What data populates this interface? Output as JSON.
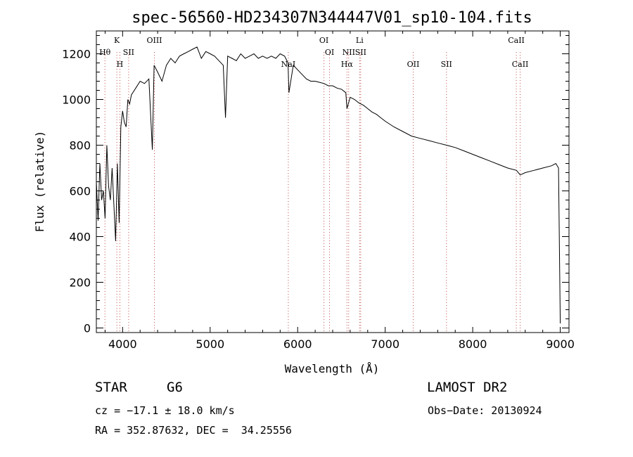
{
  "chart_data": {
    "type": "line",
    "title": "spec-56560-HD234307N344447V01_sp10-104.fits",
    "xlabel": "Wavelength (Å)",
    "ylabel": "Flux (relative)",
    "xlim": [
      3700,
      9100
    ],
    "ylim": [
      -20,
      1300
    ],
    "xticks": [
      4000,
      5000,
      6000,
      7000,
      8000,
      9000
    ],
    "yticks": [
      0,
      200,
      400,
      600,
      800,
      1000,
      1200
    ],
    "grid": false,
    "series": [
      {
        "x": [
          3700,
          3720,
          3740,
          3760,
          3780,
          3800,
          3820,
          3840,
          3860,
          3880,
          3900,
          3920,
          3940,
          3960,
          3980,
          4000,
          4020,
          4040,
          4060,
          4080,
          4100,
          4150,
          4200,
          4250,
          4300,
          4340,
          4360,
          4400,
          4450,
          4500,
          4550,
          4600,
          4650,
          4700,
          4750,
          4800,
          4850,
          4900,
          4950,
          5000,
          5050,
          5100,
          5150,
          5175,
          5200,
          5250,
          5300,
          5350,
          5400,
          5450,
          5500,
          5550,
          5600,
          5650,
          5700,
          5750,
          5800,
          5850,
          5890,
          5900,
          5950,
          6000,
          6050,
          6100,
          6150,
          6200,
          6250,
          6300,
          6350,
          6400,
          6450,
          6500,
          6550,
          6563,
          6600,
          6650,
          6700,
          6750,
          6800,
          6850,
          6900,
          6950,
          7000,
          7100,
          7200,
          7300,
          7400,
          7500,
          7600,
          7700,
          7800,
          7900,
          8000,
          8100,
          8200,
          8300,
          8400,
          8500,
          8542,
          8600,
          8700,
          8800,
          8900,
          8950,
          8980,
          9000
        ],
        "y": [
          640,
          470,
          720,
          560,
          600,
          480,
          800,
          620,
          560,
          700,
          540,
          380,
          720,
          460,
          880,
          950,
          900,
          880,
          1000,
          980,
          1020,
          1050,
          1080,
          1070,
          1090,
          780,
          1150,
          1120,
          1080,
          1150,
          1180,
          1160,
          1190,
          1200,
          1210,
          1220,
          1230,
          1180,
          1210,
          1200,
          1190,
          1170,
          1150,
          920,
          1190,
          1180,
          1170,
          1200,
          1180,
          1190,
          1200,
          1180,
          1190,
          1180,
          1190,
          1180,
          1200,
          1190,
          1160,
          1030,
          1150,
          1130,
          1110,
          1090,
          1080,
          1080,
          1075,
          1070,
          1060,
          1060,
          1050,
          1045,
          1030,
          960,
          1010,
          1000,
          985,
          975,
          960,
          945,
          935,
          920,
          905,
          880,
          860,
          840,
          830,
          820,
          810,
          800,
          790,
          775,
          760,
          745,
          730,
          715,
          700,
          690,
          670,
          680,
          690,
          700,
          710,
          720,
          700,
          20
        ]
      }
    ],
    "lines": [
      {
        "label": "Hθ",
        "wave": 3798,
        "row": 1
      },
      {
        "label": "K",
        "wave": 3934,
        "row": 0
      },
      {
        "label": "H",
        "wave": 3969,
        "row": 2
      },
      {
        "label": "SII",
        "wave": 4069,
        "row": 1
      },
      {
        "label": "OIII",
        "wave": 4363,
        "row": 0
      },
      {
        "label": "NaI",
        "wave": 5893,
        "row": 2
      },
      {
        "label": "OI",
        "wave": 6300,
        "row": 0
      },
      {
        "label": "OI",
        "wave": 6364,
        "row": 1
      },
      {
        "label": "NII",
        "wave": 6583,
        "row": 1
      },
      {
        "label": "Hα",
        "wave": 6563,
        "row": 2
      },
      {
        "label": "Li",
        "wave": 6708,
        "row": 0
      },
      {
        "label": "SII",
        "wave": 6720,
        "row": 1
      },
      {
        "label": "OII",
        "wave": 7320,
        "row": 2
      },
      {
        "label": "SII",
        "wave": 7700,
        "row": 2
      },
      {
        "label": "CaII",
        "wave": 8498,
        "row": 0
      },
      {
        "label": "CaII",
        "wave": 8542,
        "row": 2
      }
    ]
  },
  "info": {
    "class_label": "STAR",
    "subclass": "G6",
    "survey": "LAMOST DR2",
    "cz": "cz = −17.1 ± 18.0 km/s",
    "obs_date": "Obs−Date: 20130924",
    "coords": "RA = 352.87632, DEC =  34.25556"
  }
}
